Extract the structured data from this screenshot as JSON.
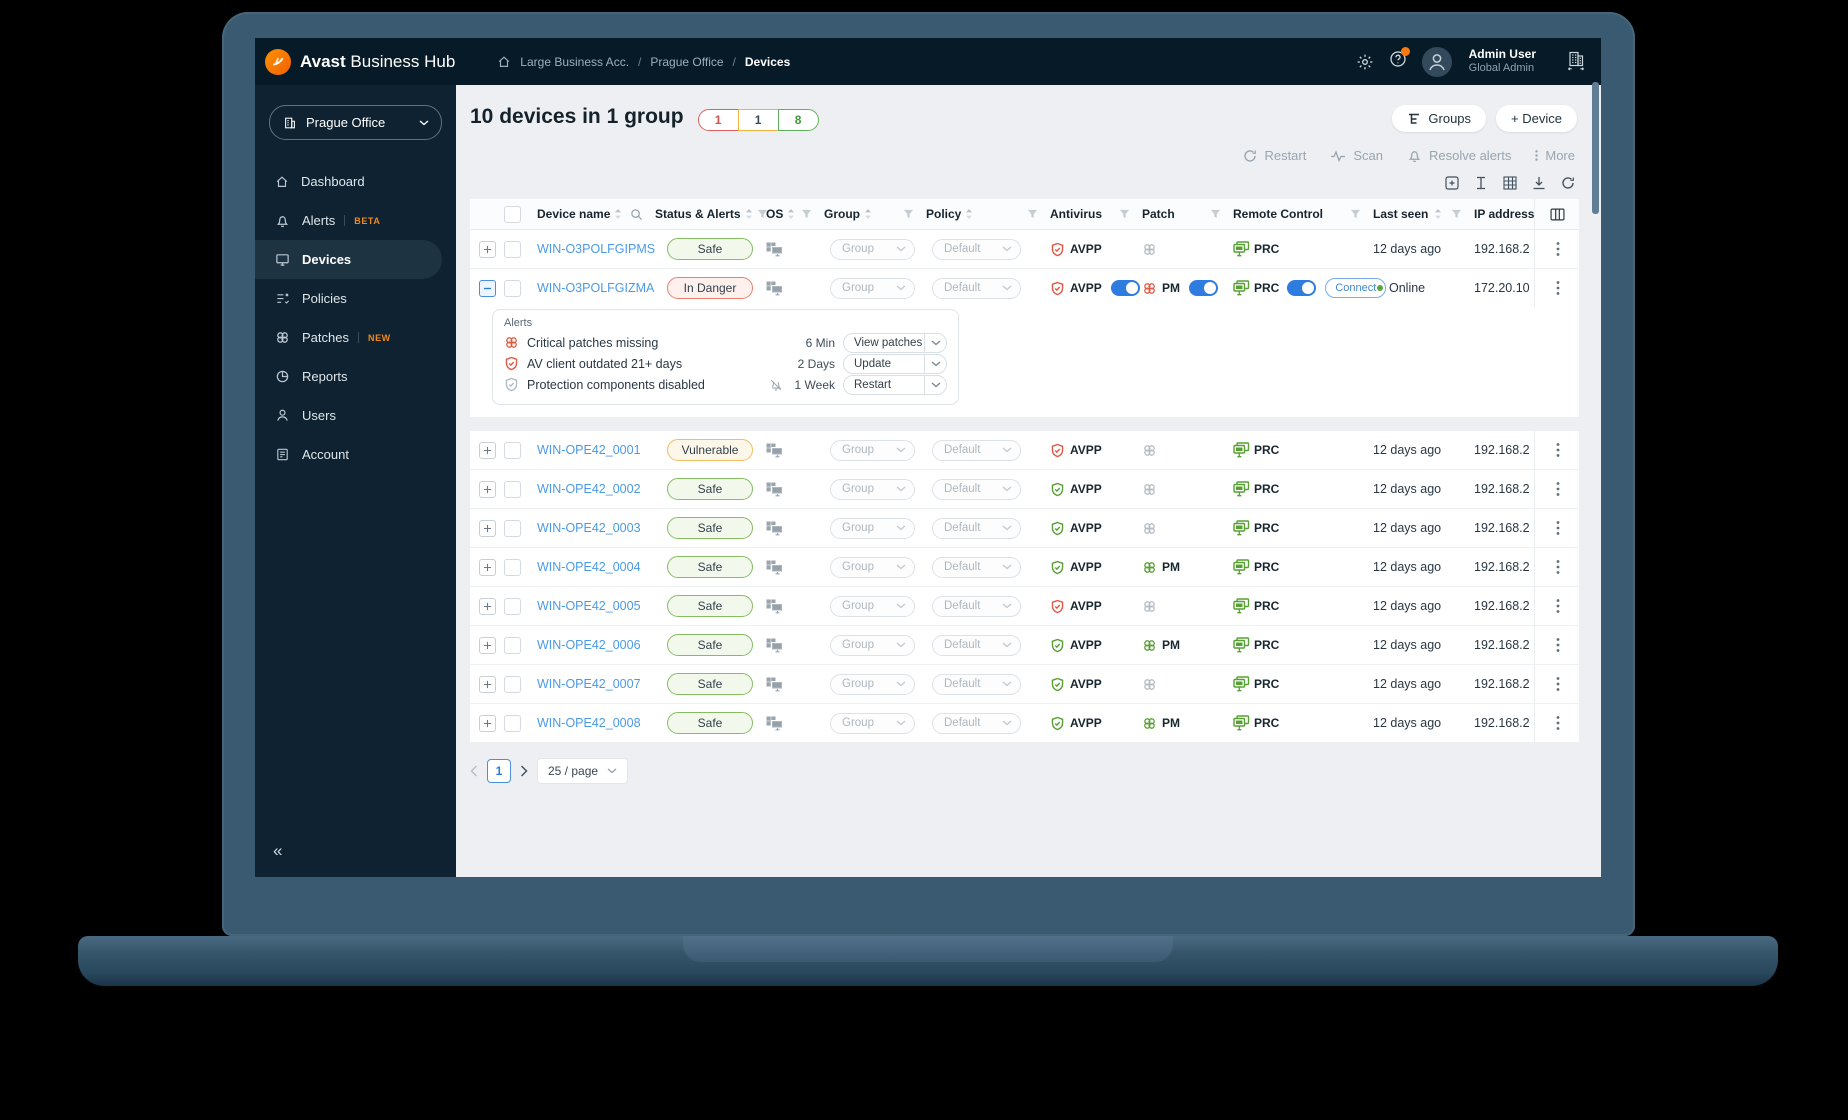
{
  "header": {
    "brand_bold": "Avast",
    "brand_rest": "Business Hub",
    "breadcrumb": [
      "Large Business Acc.",
      "Prague Office",
      "Devices"
    ],
    "breadcrumb_sep": "/",
    "user": {
      "name": "Admin User",
      "role": "Global Admin"
    }
  },
  "sidebar": {
    "selector_label": "Prague Office",
    "collapse_icon": "«",
    "items": [
      {
        "label": "Dashboard",
        "icon": "home"
      },
      {
        "label": "Alerts",
        "badge": "BETA",
        "icon": "bell"
      },
      {
        "label": "Devices",
        "icon": "monitor",
        "active": true
      },
      {
        "label": "Policies",
        "icon": "policies"
      },
      {
        "label": "Patches",
        "badge": "NEW",
        "icon": "patch"
      },
      {
        "label": "Reports",
        "icon": "reports"
      },
      {
        "label": "Users",
        "icon": "user"
      },
      {
        "label": "Account",
        "icon": "account"
      }
    ]
  },
  "page": {
    "title": "10 devices in 1 group",
    "counts": [
      {
        "value": "1",
        "border": "#e06060",
        "text": "#d94f4f"
      },
      {
        "value": "1",
        "border": "#edb53e",
        "text": "#3c4852"
      },
      {
        "value": "8",
        "border": "#62b15c",
        "text": "#3f9a3f"
      }
    ],
    "buttons": {
      "groups": "Groups",
      "device": "+ Device"
    },
    "actions": [
      {
        "label": "Restart",
        "icon": "restart"
      },
      {
        "label": "Scan",
        "icon": "scan"
      },
      {
        "label": "Resolve alerts",
        "icon": "bell"
      },
      {
        "label": "More",
        "icon": "dotsv"
      }
    ],
    "tools": [
      "plusbox",
      "textwidth",
      "tablegrid",
      "download",
      "refresh"
    ]
  },
  "table": {
    "columns": [
      {
        "key": "name",
        "label": "Device name",
        "sort": true,
        "search": true
      },
      {
        "key": "status",
        "label": "Status & Alerts",
        "sort": true,
        "filter": true
      },
      {
        "key": "os",
        "label": "OS",
        "sort": true,
        "filter": true
      },
      {
        "key": "group",
        "label": "Group",
        "sort": true,
        "filter": true
      },
      {
        "key": "policy",
        "label": "Policy",
        "sort": true,
        "filter": true
      },
      {
        "key": "av",
        "label": "Antivirus",
        "filter": true
      },
      {
        "key": "patch",
        "label": "Patch",
        "filter": true
      },
      {
        "key": "rc",
        "label": "Remote Control",
        "filter": true
      },
      {
        "key": "last",
        "label": "Last seen",
        "sort": true,
        "filter": true
      },
      {
        "key": "ip",
        "label": "IP address"
      }
    ],
    "rows": [
      {
        "block": 1,
        "name": "WIN-O3POLFGIPMS",
        "status": "Safe",
        "status_kind": "safe",
        "group": "Group",
        "policy": "Default",
        "av": "AVPP",
        "av_alert": true,
        "patch": "",
        "rc": "PRC",
        "last": "12 days ago",
        "ip": "192.168.2"
      },
      {
        "block": 1,
        "name": "WIN-O3POLFGIZMA",
        "status": "In Danger",
        "status_kind": "danger",
        "expanded": true,
        "toggles": true,
        "group": "Group",
        "policy": "Default",
        "av": "AVPP",
        "av_alert": true,
        "patch": "PM",
        "patch_alert": true,
        "rc": "PRC",
        "connect": "Connect",
        "online": true,
        "last": "Online",
        "ip": "172.20.10"
      },
      {
        "block": 2,
        "name": "WIN-OPE42_0001",
        "status": "Vulnerable",
        "status_kind": "vulnerable",
        "group": "Group",
        "policy": "Default",
        "av": "AVPP",
        "av_alert": true,
        "patch": "",
        "rc": "PRC",
        "last": "12 days ago",
        "ip": "192.168.2"
      },
      {
        "block": 2,
        "name": "WIN-OPE42_0002",
        "status": "Safe",
        "status_kind": "safe",
        "group": "Group",
        "policy": "Default",
        "av": "AVPP",
        "av_alert": false,
        "patch": "",
        "rc": "PRC",
        "last": "12 days ago",
        "ip": "192.168.2"
      },
      {
        "block": 2,
        "name": "WIN-OPE42_0003",
        "status": "Safe",
        "status_kind": "safe",
        "group": "Group",
        "policy": "Default",
        "av": "AVPP",
        "av_alert": false,
        "patch": "",
        "rc": "PRC",
        "last": "12 days ago",
        "ip": "192.168.2"
      },
      {
        "block": 2,
        "name": "WIN-OPE42_0004",
        "status": "Safe",
        "status_kind": "safe",
        "group": "Group",
        "policy": "Default",
        "av": "AVPP",
        "av_alert": false,
        "patch": "PM",
        "patch_alert": false,
        "rc": "PRC",
        "last": "12 days ago",
        "ip": "192.168.2"
      },
      {
        "block": 2,
        "name": "WIN-OPE42_0005",
        "status": "Safe",
        "status_kind": "safe",
        "group": "Group",
        "policy": "Default",
        "av": "AVPP",
        "av_alert": true,
        "patch": "",
        "rc": "PRC",
        "last": "12 days ago",
        "ip": "192.168.2"
      },
      {
        "block": 2,
        "name": "WIN-OPE42_0006",
        "status": "Safe",
        "status_kind": "safe",
        "group": "Group",
        "policy": "Default",
        "av": "AVPP",
        "av_alert": false,
        "patch": "PM",
        "patch_alert": false,
        "rc": "PRC",
        "last": "12 days ago",
        "ip": "192.168.2"
      },
      {
        "block": 2,
        "name": "WIN-OPE42_0007",
        "status": "Safe",
        "status_kind": "safe",
        "group": "Group",
        "policy": "Default",
        "av": "AVPP",
        "av_alert": false,
        "patch": "",
        "rc": "PRC",
        "last": "12 days ago",
        "ip": "192.168.2"
      },
      {
        "block": 2,
        "name": "WIN-OPE42_0008",
        "status": "Safe",
        "status_kind": "safe",
        "group": "Group",
        "policy": "Default",
        "av": "AVPP",
        "av_alert": false,
        "patch": "PM",
        "patch_alert": false,
        "rc": "PRC",
        "last": "12 days ago",
        "ip": "192.168.2"
      }
    ],
    "alerts_panel": {
      "title": "Alerts",
      "items": [
        {
          "icon": "patch",
          "icon_class": "red",
          "text": "Critical patches missing",
          "age": "6 Min",
          "action": "View patches"
        },
        {
          "icon": "shield",
          "icon_class": "red",
          "text": "AV client outdated 21+ days",
          "age": "2 Days",
          "action": "Update"
        },
        {
          "icon": "shield",
          "icon_class": "gray",
          "text": "Protection components disabled",
          "muted_bell": true,
          "age": "1 Week",
          "action": "Restart"
        }
      ]
    },
    "pagination": {
      "page": "1",
      "page_size": "25 / page"
    }
  },
  "colors": {
    "accent_orange": "#f7790f",
    "toggle_blue": "#2e7ce0",
    "safe_green": "#86bd63",
    "vulnerable_amber": "#f0bd62",
    "danger_red": "#e88070",
    "link_blue": "#4b9ae6"
  }
}
